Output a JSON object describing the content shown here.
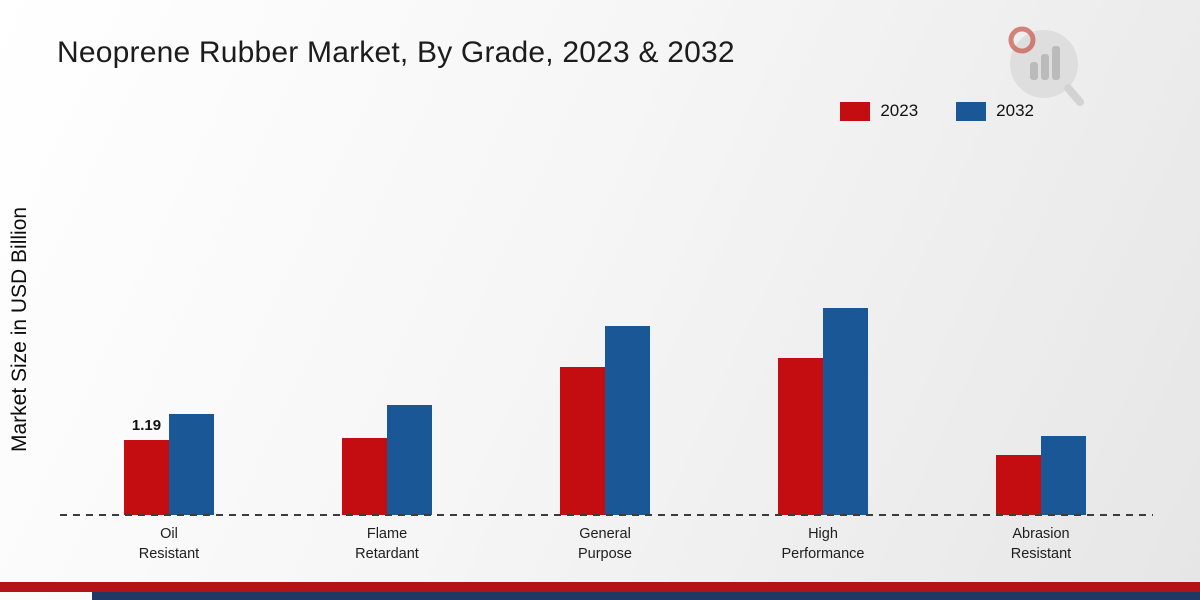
{
  "chart_data": {
    "type": "bar",
    "title": "Neoprene Rubber Market, By Grade, 2023 & 2032",
    "xlabel": "",
    "ylabel": "Market Size in USD Billion",
    "categories": [
      "Oil Resistant",
      "Flame Retardant",
      "General Purpose",
      "High Performance",
      "Abrasion Resistant"
    ],
    "series": [
      {
        "name": "2023",
        "color": "#c30d10",
        "values": [
          1.19,
          1.22,
          2.35,
          2.5,
          0.95
        ]
      },
      {
        "name": "2032",
        "color": "#1a5796",
        "values": [
          1.6,
          1.75,
          3.0,
          3.3,
          1.25
        ]
      }
    ],
    "ylim": [
      0,
      3.5
    ],
    "grid": false,
    "legend_position": "top-right",
    "baseline_style": "dashed",
    "bar_label": {
      "series": "2023",
      "category": "Oil Resistant",
      "text": "1.19"
    }
  },
  "legend": {
    "items": [
      {
        "label": "2023",
        "color": "#c30d10"
      },
      {
        "label": "2032",
        "color": "#1a5796"
      }
    ]
  },
  "footer": {
    "stripe_colors": [
      "#b31217",
      "#1f3864"
    ]
  },
  "logo": {
    "name": "brand-logo-chart-magnifier"
  }
}
